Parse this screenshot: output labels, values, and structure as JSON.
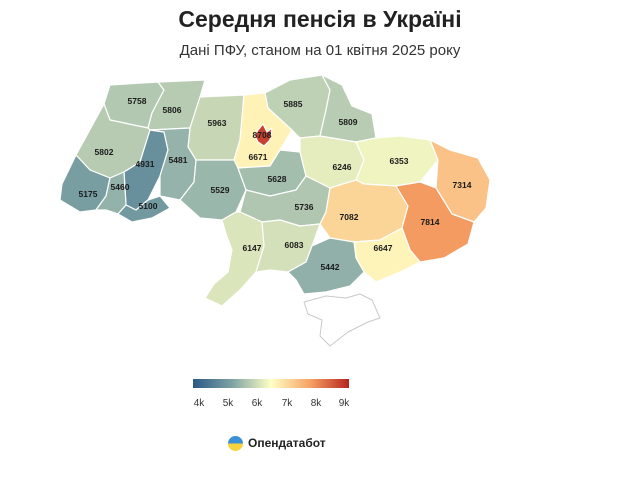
{
  "title": "Середня пенсія в Україні",
  "subtitle": "Дані ПФУ, станом на 01 квітня 2025 року",
  "legend": {
    "ticks": [
      "4k",
      "5k",
      "6k",
      "7k",
      "8k",
      "9k"
    ],
    "colors": [
      "#2b5a86",
      "#7da2a4",
      "#ffffc4",
      "#f7a266",
      "#b7231f"
    ]
  },
  "brand": {
    "name": "Опендатабот",
    "icon": "opendatabot-logo-icon"
  },
  "regions": [
    {
      "id": "volyn",
      "value": 5758
    },
    {
      "id": "rivne",
      "value": 5806
    },
    {
      "id": "zhytomyr",
      "value": 5963
    },
    {
      "id": "kyiv-city",
      "value": 8708
    },
    {
      "id": "kyiv-oblast",
      "value": 6671
    },
    {
      "id": "chernihiv",
      "value": 5885
    },
    {
      "id": "sumy",
      "value": 5809
    },
    {
      "id": "lviv",
      "value": 5802
    },
    {
      "id": "ternopil",
      "value": 4931
    },
    {
      "id": "khmelnytskyi",
      "value": 5481
    },
    {
      "id": "poltava",
      "value": 6246
    },
    {
      "id": "kharkiv",
      "value": 6353
    },
    {
      "id": "luhansk",
      "value": 7314
    },
    {
      "id": "zakarpattia",
      "value": 5175
    },
    {
      "id": "ivano-frankivsk",
      "value": 5460
    },
    {
      "id": "chernivtsi",
      "value": 5100
    },
    {
      "id": "vinnytsia",
      "value": 5529
    },
    {
      "id": "cherkasy",
      "value": 5628
    },
    {
      "id": "kirovohrad",
      "value": 5736
    },
    {
      "id": "dnipropetrovsk",
      "value": 7082
    },
    {
      "id": "donetsk",
      "value": 7814
    },
    {
      "id": "zaporizhzhia",
      "value": 6647
    },
    {
      "id": "odesa",
      "value": 6147
    },
    {
      "id": "mykolaiv",
      "value": 6083
    },
    {
      "id": "kherson",
      "value": 5442
    },
    {
      "id": "crimea",
      "value": null
    }
  ]
}
